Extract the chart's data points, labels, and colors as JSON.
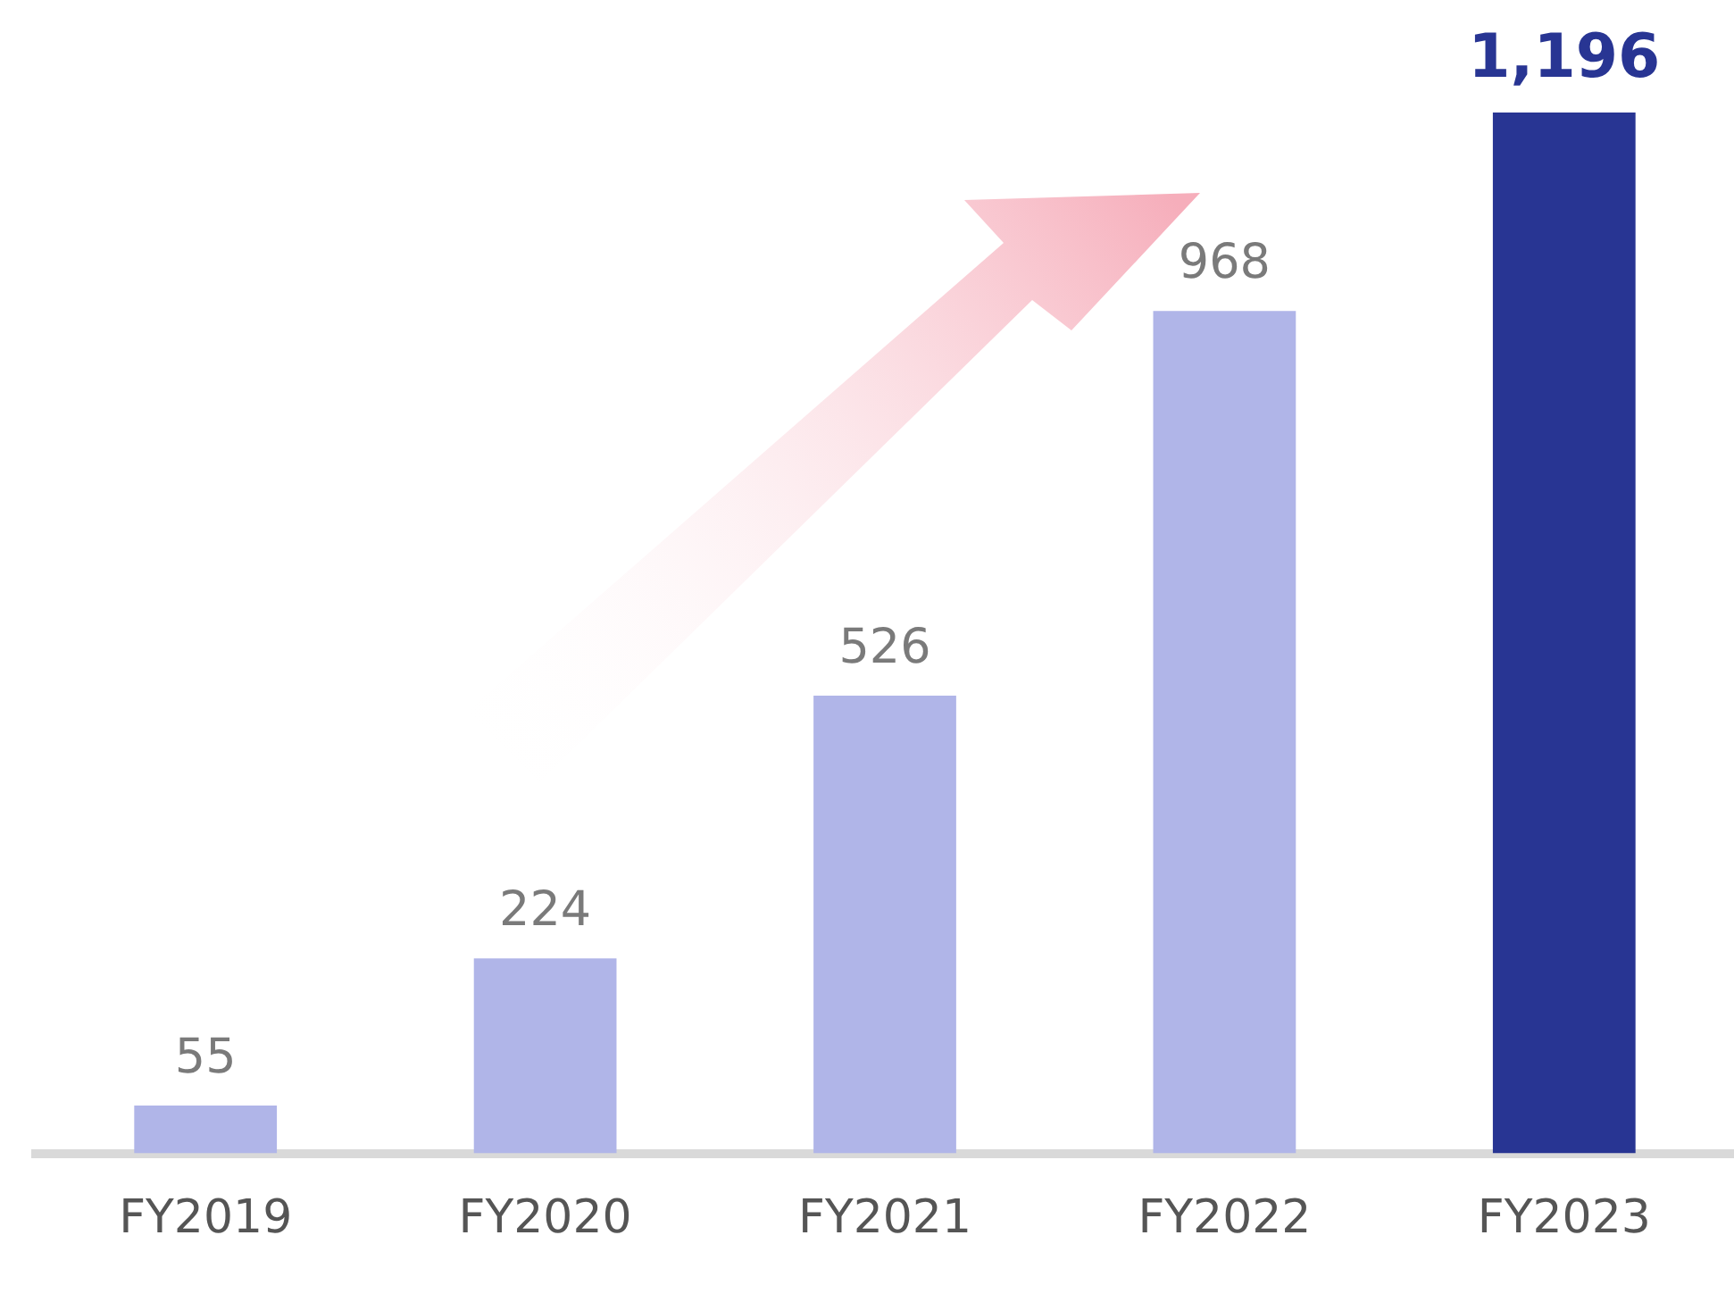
{
  "chart_data": {
    "type": "bar",
    "categories": [
      "FY2019",
      "FY2020",
      "FY2021",
      "FY2022",
      "FY2023"
    ],
    "values": [
      55,
      224,
      526,
      968,
      1196
    ],
    "colors": [
      "#b0b5e8",
      "#b0b5e8",
      "#b0b5e8",
      "#b0b5e8",
      "#283593"
    ],
    "value_labels": [
      "55",
      "224",
      "526",
      "968",
      "1,196"
    ],
    "ylim": [
      0,
      1196
    ],
    "grid": false,
    "legend": false
  }
}
